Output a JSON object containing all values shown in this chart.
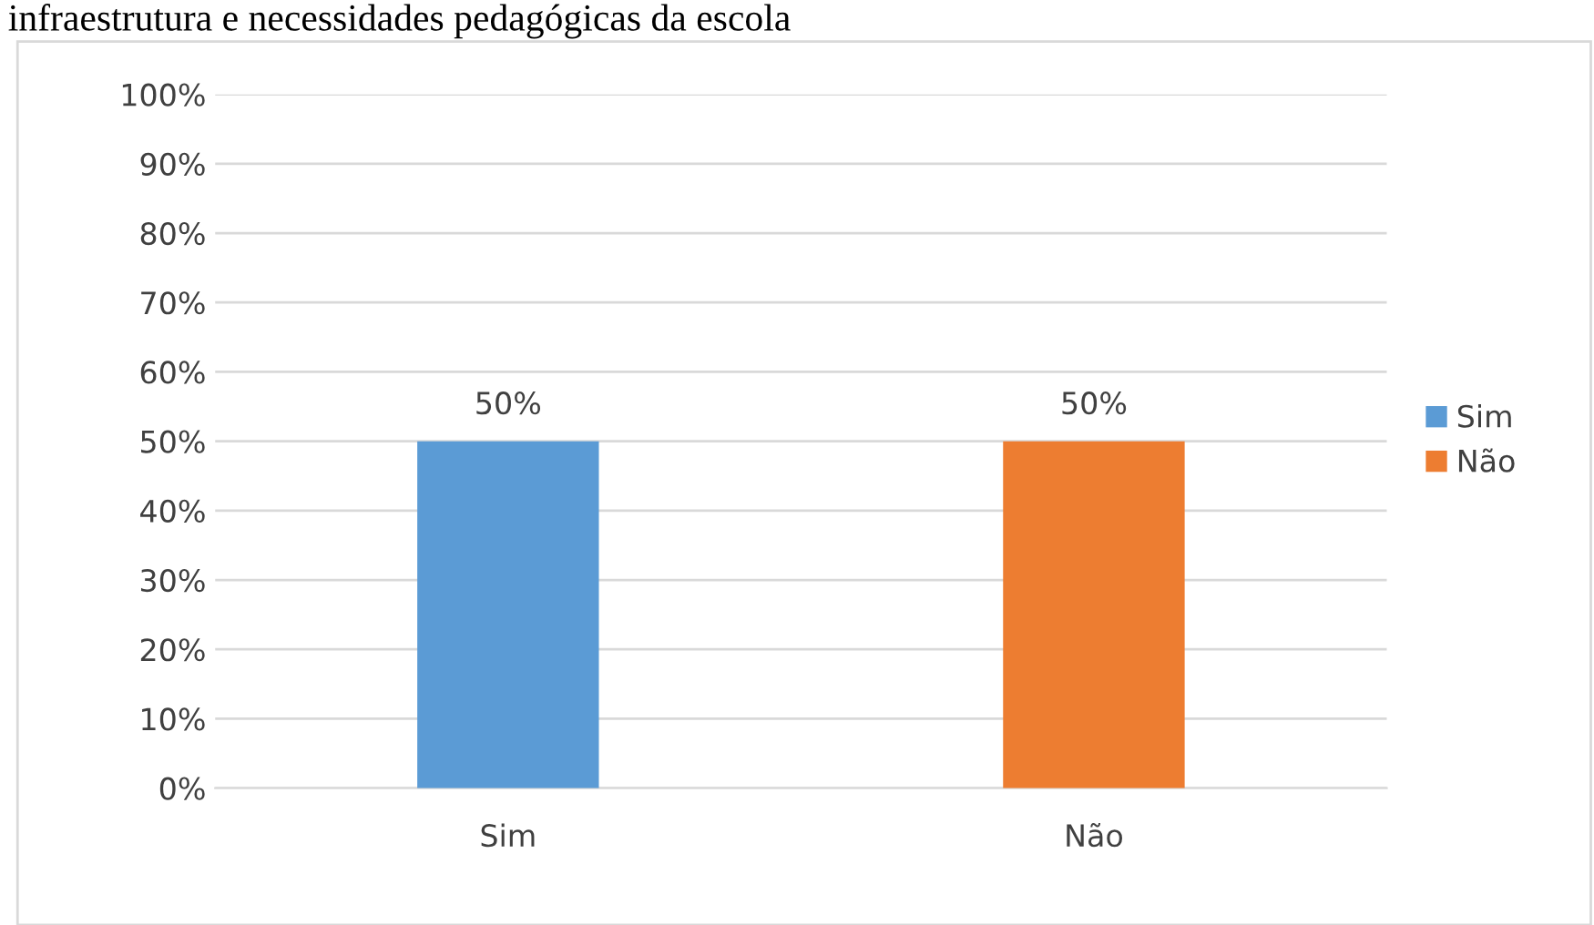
{
  "chart_data": {
    "type": "bar",
    "title": "infraestrutura e necessidades pedagógicas da escola",
    "categories": [
      "Sim",
      "Não"
    ],
    "series": [
      {
        "name": "Sim",
        "color": "#5b9bd5",
        "values": [
          50,
          null
        ]
      },
      {
        "name": "Não",
        "color": "#ed7d31",
        "values": [
          null,
          50
        ]
      }
    ],
    "stacked": true,
    "ylim": [
      0,
      100
    ],
    "yticks": [
      {
        "value": 0,
        "label": "0%"
      },
      {
        "value": 10,
        "label": "10%"
      },
      {
        "value": 20,
        "label": "20%"
      },
      {
        "value": 30,
        "label": "30%"
      },
      {
        "value": 40,
        "label": "40%"
      },
      {
        "value": 50,
        "label": "50%"
      },
      {
        "value": 60,
        "label": "60%"
      },
      {
        "value": 70,
        "label": "70%"
      },
      {
        "value": 80,
        "label": "80%"
      },
      {
        "value": 90,
        "label": "90%"
      },
      {
        "value": 100,
        "label": "100%"
      }
    ],
    "value_labels": [
      "50%",
      "50%"
    ],
    "grid": "y",
    "legend": "right"
  }
}
